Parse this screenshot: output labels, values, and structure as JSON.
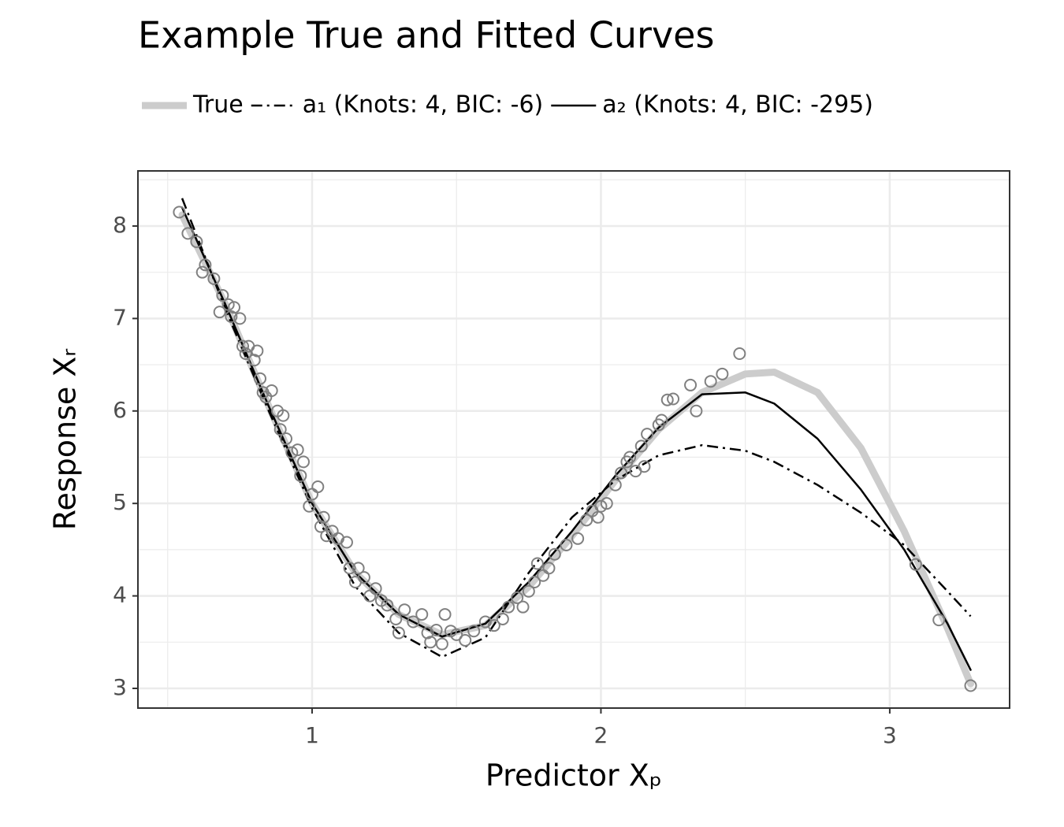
{
  "chart_data": {
    "type": "line",
    "title": "Example True and Fitted Curves",
    "xlabel": "Predictor Xₚ",
    "ylabel": "Response Xᵣ",
    "xlim": [
      0.397,
      3.415
    ],
    "ylim": [
      2.787,
      8.596
    ],
    "xticks": [
      1,
      2,
      3
    ],
    "yticks": [
      3,
      4,
      5,
      6,
      7,
      8
    ],
    "xminor": [
      0.5,
      1.5,
      2.5
    ],
    "yminor": [
      3.5,
      4.5,
      5.5,
      6.5,
      7.5,
      8.5
    ],
    "grid": true,
    "x": [
      0.55,
      0.7,
      0.85,
      1.0,
      1.15,
      1.3,
      1.45,
      1.6,
      1.75,
      1.9,
      2.05,
      2.2,
      2.35,
      2.5,
      2.6,
      2.75,
      2.9,
      3.05,
      3.2,
      3.28
    ],
    "series": [
      {
        "name": "True",
        "color": "#cccccc",
        "width": 9,
        "dash": "none",
        "values": [
          8.12,
          7.15,
          6.05,
          5.0,
          4.25,
          3.8,
          3.58,
          3.68,
          4.1,
          4.65,
          5.25,
          5.8,
          6.2,
          6.4,
          6.42,
          6.2,
          5.6,
          4.7,
          3.65,
          3.05
        ]
      },
      {
        "name": "a₁ (Knots: 4, BIC: -6)",
        "color": "#000000",
        "width": 2.5,
        "dash": "14 6 3 6",
        "values": [
          8.3,
          7.1,
          6.0,
          4.95,
          4.1,
          3.6,
          3.34,
          3.55,
          4.25,
          4.85,
          5.25,
          5.52,
          5.63,
          5.57,
          5.45,
          5.2,
          4.9,
          4.55,
          4.05,
          3.78
        ]
      },
      {
        "name": "a₂ (Knots: 4, BIC: -295)",
        "color": "#000000",
        "width": 2.5,
        "dash": "none",
        "values": [
          8.2,
          7.15,
          6.05,
          5.0,
          4.25,
          3.8,
          3.56,
          3.7,
          4.15,
          4.7,
          5.3,
          5.82,
          6.18,
          6.2,
          6.08,
          5.7,
          5.15,
          4.5,
          3.7,
          3.2
        ]
      }
    ],
    "scatter": {
      "color": "#808080",
      "x": [
        0.54,
        0.57,
        0.6,
        0.62,
        0.63,
        0.66,
        0.68,
        0.69,
        0.71,
        0.72,
        0.73,
        0.75,
        0.76,
        0.77,
        0.78,
        0.8,
        0.81,
        0.82,
        0.83,
        0.84,
        0.86,
        0.88,
        0.89,
        0.9,
        0.91,
        0.93,
        0.95,
        0.96,
        0.97,
        0.99,
        1.0,
        1.02,
        1.03,
        1.04,
        1.05,
        1.07,
        1.09,
        1.12,
        1.13,
        1.15,
        1.16,
        1.18,
        1.2,
        1.22,
        1.24,
        1.26,
        1.29,
        1.3,
        1.32,
        1.35,
        1.38,
        1.4,
        1.41,
        1.43,
        1.45,
        1.46,
        1.48,
        1.5,
        1.53,
        1.56,
        1.6,
        1.63,
        1.66,
        1.68,
        1.71,
        1.73,
        1.75,
        1.77,
        1.78,
        1.8,
        1.82,
        1.84,
        1.88,
        1.92,
        1.95,
        1.97,
        1.99,
        2.0,
        2.02,
        2.05,
        2.07,
        2.09,
        2.1,
        2.12,
        2.14,
        2.15,
        2.16,
        2.2,
        2.21,
        2.23,
        2.25,
        2.31,
        2.33,
        2.38,
        2.42,
        2.48,
        3.09,
        3.17,
        3.28
      ],
      "values": [
        8.15,
        7.92,
        7.83,
        7.5,
        7.58,
        7.43,
        7.07,
        7.25,
        7.15,
        7.02,
        7.12,
        7.0,
        6.7,
        6.62,
        6.7,
        6.55,
        6.65,
        6.35,
        6.2,
        6.15,
        6.22,
        6.0,
        5.8,
        5.95,
        5.7,
        5.55,
        5.58,
        5.3,
        5.45,
        4.97,
        5.1,
        5.18,
        4.75,
        4.85,
        4.65,
        4.7,
        4.62,
        4.58,
        4.3,
        4.15,
        4.3,
        4.2,
        4.0,
        4.08,
        3.95,
        3.9,
        3.75,
        3.6,
        3.85,
        3.72,
        3.8,
        3.6,
        3.5,
        3.63,
        3.48,
        3.8,
        3.62,
        3.58,
        3.52,
        3.62,
        3.72,
        3.68,
        3.75,
        3.88,
        3.98,
        3.88,
        4.05,
        4.15,
        4.35,
        4.22,
        4.3,
        4.45,
        4.55,
        4.62,
        4.82,
        4.92,
        4.85,
        4.97,
        5.0,
        5.2,
        5.33,
        5.45,
        5.5,
        5.35,
        5.62,
        5.4,
        5.75,
        5.85,
        5.9,
        6.12,
        6.13,
        6.28,
        6.0,
        6.32,
        6.4,
        6.62,
        4.34,
        3.74,
        3.03
      ]
    }
  }
}
